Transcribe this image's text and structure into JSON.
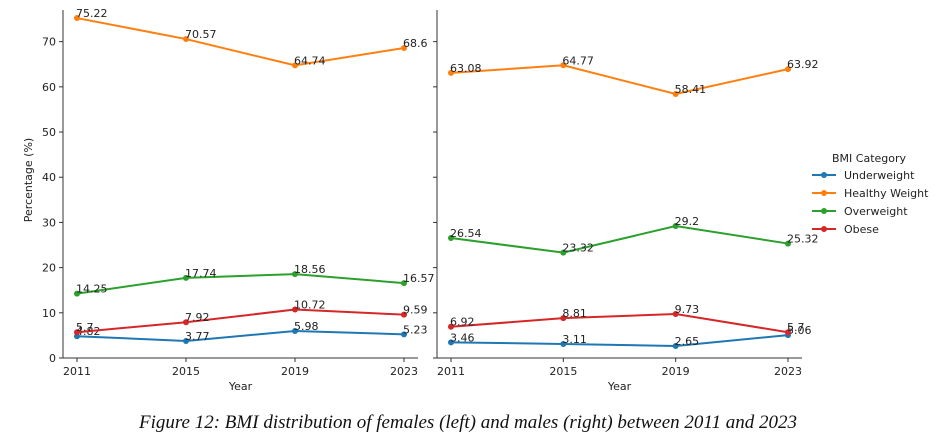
{
  "chart_data": [
    {
      "type": "line",
      "x": [
        "2011",
        "2015",
        "2019",
        "2023"
      ],
      "xlabel": "Year",
      "ylabel": "Percentage (%)",
      "ylim": [
        0,
        77
      ],
      "yticks": [
        0,
        10,
        20,
        30,
        40,
        50,
        60,
        70
      ],
      "series": [
        {
          "name": "Underweight",
          "values": [
            4.82,
            3.77,
            5.98,
            5.23
          ],
          "labels": [
            "4.82",
            "3.77",
            "5.98",
            "5.23"
          ]
        },
        {
          "name": "Healthy Weight",
          "values": [
            75.22,
            70.57,
            64.74,
            68.6
          ],
          "labels": [
            "75.22",
            "70.57",
            "64.74",
            "68.6"
          ]
        },
        {
          "name": "Overweight",
          "values": [
            14.25,
            17.74,
            18.56,
            16.57
          ],
          "labels": [
            "14.25",
            "17.74",
            "18.56",
            "16.57"
          ]
        },
        {
          "name": "Obese",
          "values": [
            5.7,
            7.92,
            10.72,
            9.59
          ],
          "labels": [
            "5.7",
            "7.92",
            "10.72",
            "9.59"
          ]
        }
      ]
    },
    {
      "type": "line",
      "x": [
        "2011",
        "2015",
        "2019",
        "2023"
      ],
      "xlabel": "Year",
      "ylabel": "",
      "ylim": [
        0,
        77
      ],
      "series": [
        {
          "name": "Underweight",
          "values": [
            3.46,
            3.11,
            2.65,
            5.06
          ],
          "labels": [
            "3.46",
            "3.11",
            "2.65",
            "5.06"
          ]
        },
        {
          "name": "Healthy Weight",
          "values": [
            63.08,
            64.77,
            58.41,
            63.92
          ],
          "labels": [
            "63.08",
            "64.77",
            "58.41",
            "63.92"
          ]
        },
        {
          "name": "Overweight",
          "values": [
            26.54,
            23.32,
            29.2,
            25.32
          ],
          "labels": [
            "26.54",
            "23.32",
            "29.2",
            "25.32"
          ]
        },
        {
          "name": "Obese",
          "values": [
            6.92,
            8.81,
            9.73,
            5.7
          ],
          "labels": [
            "6.92",
            "8.81",
            "9.73",
            "5.7"
          ]
        }
      ]
    }
  ],
  "legend": {
    "title": "BMI Category",
    "position": "right",
    "items": [
      {
        "label": "Underweight",
        "color": "#1f77b4"
      },
      {
        "label": "Healthy Weight",
        "color": "#ff7f0e"
      },
      {
        "label": "Overweight",
        "color": "#2ca02c"
      },
      {
        "label": "Obese",
        "color": "#d62728"
      }
    ]
  },
  "colors": {
    "Underweight": "#1f77b4",
    "Healthy Weight": "#ff7f0e",
    "Overweight": "#2ca02c",
    "Obese": "#d62728"
  },
  "caption": "Figure 12: BMI distribution of females (left) and males (right) between 2011 and 2023"
}
